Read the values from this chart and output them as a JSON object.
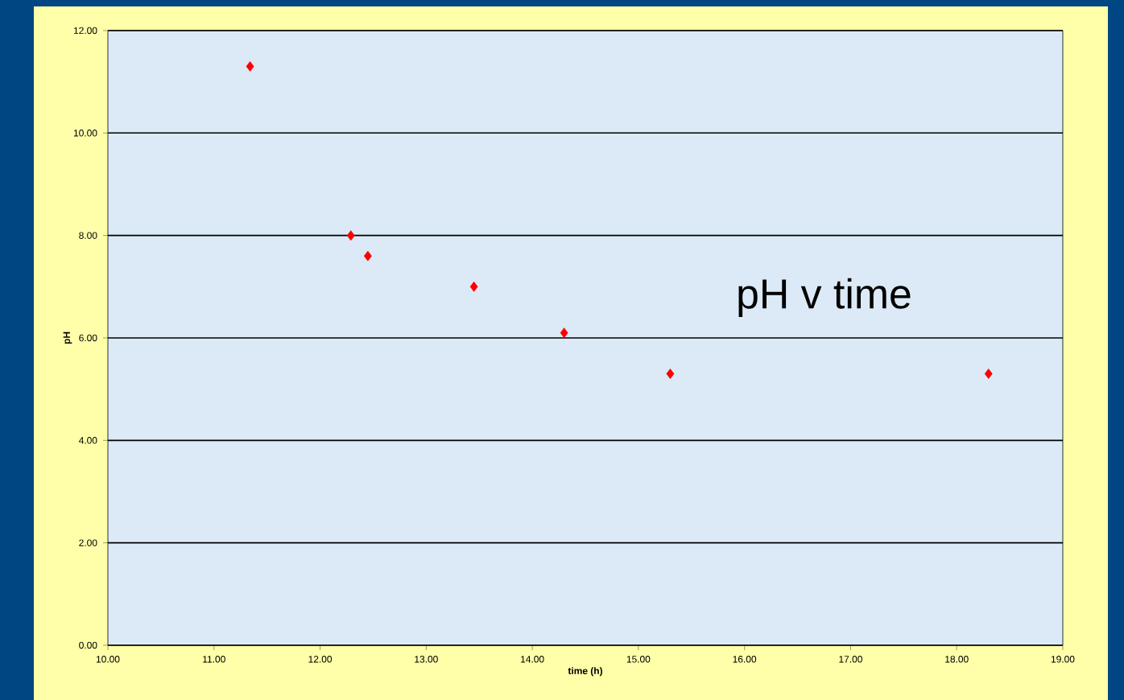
{
  "chart_data": {
    "type": "scatter",
    "title": "pH v time",
    "xlabel": "time (h)",
    "ylabel": "pH",
    "x": [
      11.34,
      12.29,
      12.45,
      13.45,
      14.3,
      15.3,
      18.3
    ],
    "series": [
      {
        "color": "#ff0000",
        "values": [
          11.3,
          8.0,
          7.6,
          7.0,
          6.1,
          5.3,
          5.3
        ]
      }
    ],
    "xlim": [
      10,
      19
    ],
    "ylim": [
      0,
      12
    ],
    "xticks": [
      {
        "value": 10,
        "label": "10.00"
      },
      {
        "value": 11,
        "label": "11.00"
      },
      {
        "value": 12,
        "label": "12.00"
      },
      {
        "value": 13,
        "label": "13.00"
      },
      {
        "value": 14,
        "label": "14.00"
      },
      {
        "value": 15,
        "label": "15.00"
      },
      {
        "value": 16,
        "label": "16.00"
      },
      {
        "value": 17,
        "label": "17.00"
      },
      {
        "value": 18,
        "label": "18.00"
      },
      {
        "value": 19,
        "label": "19.00"
      }
    ],
    "yticks": [
      {
        "value": 0,
        "label": "0.00"
      },
      {
        "value": 2,
        "label": "2.00"
      },
      {
        "value": 4,
        "label": "4.00"
      },
      {
        "value": 6,
        "label": "6.00"
      },
      {
        "value": 8,
        "label": "8.00"
      },
      {
        "value": 10,
        "label": "10.00"
      },
      {
        "value": 12,
        "label": "12.00"
      }
    ],
    "grid": "y",
    "marker": "diamond"
  }
}
